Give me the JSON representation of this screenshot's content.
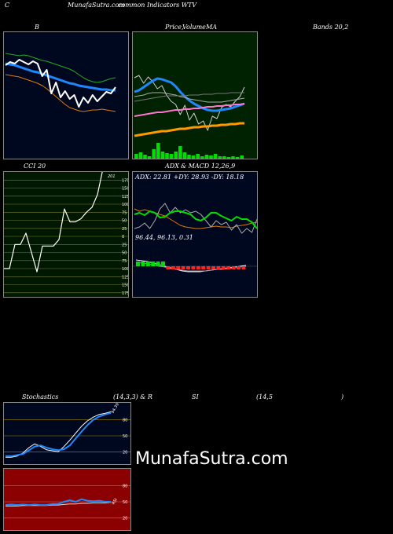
{
  "header": {
    "corner": "C",
    "site": "MunafaSutra.com",
    "subtitle": "common Indicators WTV"
  },
  "titles": {
    "b": "B",
    "price_a": "Price,",
    "price_b": "Volume",
    "price_c": "MA",
    "bands": "Bands 20,2",
    "cci": "CCI 20",
    "adx": "ADX",
    "macd": "& MACD 12,26,9",
    "stoch": "Stochastics",
    "stoch_params": "(14,3,3) & R",
    "si": "SI",
    "rsi_params": "(14,5",
    "paren": ")"
  },
  "watermark": "MunafaSutra.com",
  "colors": {
    "bands_bg": "#000820",
    "price_bg": "#002200",
    "cci_bg": "#001800",
    "adx_bg": "#000820",
    "stoch_bg": "#000820",
    "rsi_bg": "#8b0000"
  },
  "chart_data": [
    {
      "type": "line",
      "panel": "bollinger",
      "series": [
        {
          "role": "upper",
          "values": [
            67,
            68,
            69,
            70,
            69,
            70,
            72,
            74,
            76,
            77,
            79,
            81,
            83,
            85,
            87,
            90,
            94,
            98,
            101,
            103,
            104,
            103,
            101,
            99,
            98
          ]
        },
        {
          "role": "middle",
          "values": [
            80,
            81,
            82,
            84,
            86,
            88,
            90,
            91,
            93,
            95,
            97,
            99,
            101,
            103,
            105,
            106,
            108,
            109,
            110,
            111,
            112,
            113,
            113,
            114,
            114
          ]
        },
        {
          "role": "lower",
          "values": [
            94,
            95,
            96,
            97,
            99,
            101,
            103,
            105,
            108,
            112,
            117,
            122,
            127,
            132,
            136,
            138,
            140,
            141,
            140,
            139,
            139,
            138,
            139,
            140,
            141
          ]
        },
        {
          "role": "price",
          "values": [
            82,
            78,
            80,
            75,
            78,
            81,
            77,
            80,
            96,
            88,
            118,
            104,
            123,
            115,
            125,
            120,
            135,
            123,
            130,
            120,
            128,
            122,
            116,
            118,
            110
          ]
        }
      ]
    },
    {
      "type": "line",
      "panel": "price-volume-ma",
      "series": [
        {
          "role": "price",
          "values": [
            98,
            95,
            105,
            97,
            103,
            112,
            108,
            120,
            128,
            132,
            145,
            133,
            152,
            143,
            157,
            153,
            165,
            147,
            150,
            136,
            132,
            135,
            128,
            122,
            110
          ]
        },
        {
          "role": "ma-short",
          "values": [
            116,
            114,
            110,
            106,
            102,
            99,
            100,
            102,
            104,
            109,
            116,
            122,
            127,
            131,
            134,
            137,
            139,
            140,
            140,
            139,
            138,
            137,
            135,
            133,
            131
          ]
        },
        {
          "role": "ma-mid",
          "values": [
            122,
            121,
            120,
            118,
            117,
            117,
            117,
            118,
            119,
            120,
            122,
            123,
            125,
            126,
            127,
            128,
            129,
            129,
            129,
            129,
            128,
            127,
            126,
            125,
            124
          ]
        },
        {
          "role": "ma-long",
          "values": [
            128,
            127,
            126,
            125,
            124,
            123,
            122,
            121,
            121,
            121,
            121,
            121,
            120,
            120,
            120,
            119,
            119,
            119,
            118,
            118,
            118,
            117,
            117,
            117,
            117
          ]
        },
        {
          "role": "ma-pink",
          "values": [
            147,
            146,
            145,
            144,
            143,
            142,
            142,
            141,
            140,
            139,
            139,
            138,
            138,
            137,
            137,
            136,
            135,
            135,
            134,
            134,
            133,
            133,
            132,
            132,
            131
          ]
        },
        {
          "role": "ma-orange",
          "values": [
            172,
            171,
            170,
            169,
            168,
            167,
            166,
            166,
            165,
            164,
            163,
            163,
            162,
            161,
            161,
            160,
            160,
            159,
            159,
            158,
            158,
            157,
            157,
            156,
            156
          ]
        }
      ],
      "volume": [
        6,
        8,
        5,
        3,
        12,
        20,
        9,
        7,
        6,
        9,
        16,
        8,
        5,
        4,
        6,
        3,
        5,
        4,
        6,
        3,
        3,
        2,
        3,
        2,
        4
      ]
    },
    {
      "type": "line",
      "panel": "cci",
      "ticks": [
        "175",
        "150",
        "125",
        "100",
        "75",
        "50",
        "25",
        "0",
        "25",
        "50",
        "75",
        "100",
        "125",
        "150",
        "175"
      ],
      "label": "201",
      "values": [
        -100,
        -100,
        -25,
        -25,
        10,
        -50,
        -110,
        -30,
        -30,
        -30,
        -10,
        85,
        45,
        45,
        55,
        75,
        90,
        130,
        210
      ]
    },
    {
      "type": "line",
      "panel": "adx",
      "readout": "ADX: 22.81 +DY: 28.93 -DY: 18.18",
      "series": [
        {
          "role": "adx",
          "values": [
            265,
            268,
            266,
            268,
            270,
            272,
            274,
            278,
            282,
            286,
            288,
            289,
            290,
            290,
            289,
            288,
            287,
            288,
            288,
            289,
            287,
            286,
            285,
            283,
            282
          ]
        },
        {
          "role": "plus-di",
          "values": [
            290,
            288,
            283,
            290,
            280,
            265,
            258,
            270,
            263,
            270,
            266,
            270,
            268,
            272,
            280,
            288,
            280,
            285,
            282,
            292,
            285,
            296,
            290,
            295,
            278
          ]
        },
        {
          "role": "minus-di",
          "values": [
            272,
            270,
            273,
            268,
            270,
            276,
            275,
            270,
            268,
            268,
            270,
            272,
            278,
            280,
            276,
            270,
            270,
            274,
            277,
            280,
            275,
            278,
            278,
            282,
            290
          ]
        }
      ]
    },
    {
      "type": "line",
      "panel": "macd",
      "readout": "96.44, 96.13, 0.31",
      "series": [
        {
          "role": "macd",
          "values": [
            330,
            331,
            332,
            334,
            336,
            338,
            340,
            342,
            344,
            345,
            345,
            345,
            344,
            343,
            342,
            341,
            340,
            339,
            338,
            337
          ]
        },
        {
          "role": "signal",
          "values": [
            333,
            334,
            335,
            336,
            338,
            339,
            341,
            342,
            343,
            344,
            344,
            344,
            344,
            343,
            342,
            342,
            341,
            340,
            339,
            338
          ]
        }
      ]
    },
    {
      "type": "line",
      "panel": "stochastics",
      "ticks": [
        "80",
        "50",
        "20"
      ],
      "label": "94.39",
      "series": [
        {
          "role": "k",
          "values": [
            10,
            10,
            12,
            18,
            28,
            35,
            30,
            24,
            22,
            20,
            30,
            42,
            55,
            68,
            78,
            85,
            90,
            92,
            95
          ]
        },
        {
          "role": "d",
          "values": [
            12,
            12,
            14,
            16,
            23,
            30,
            32,
            28,
            25,
            23,
            25,
            32,
            45,
            58,
            70,
            80,
            86,
            90,
            93
          ]
        }
      ]
    },
    {
      "type": "line",
      "panel": "rsi",
      "ticks": [
        "80",
        "50",
        "20"
      ],
      "label": "RSI",
      "series": [
        {
          "role": "rsi",
          "values": [
            44,
            45,
            44,
            45,
            44,
            45,
            44,
            44,
            46,
            46,
            50,
            53,
            50,
            55,
            52,
            51,
            52,
            50,
            50
          ]
        },
        {
          "role": "rsi-avg",
          "values": [
            42,
            42,
            42,
            43,
            43,
            43,
            43,
            43,
            44,
            44,
            45,
            46,
            46,
            47,
            47,
            48,
            48,
            48,
            49
          ]
        }
      ]
    }
  ]
}
